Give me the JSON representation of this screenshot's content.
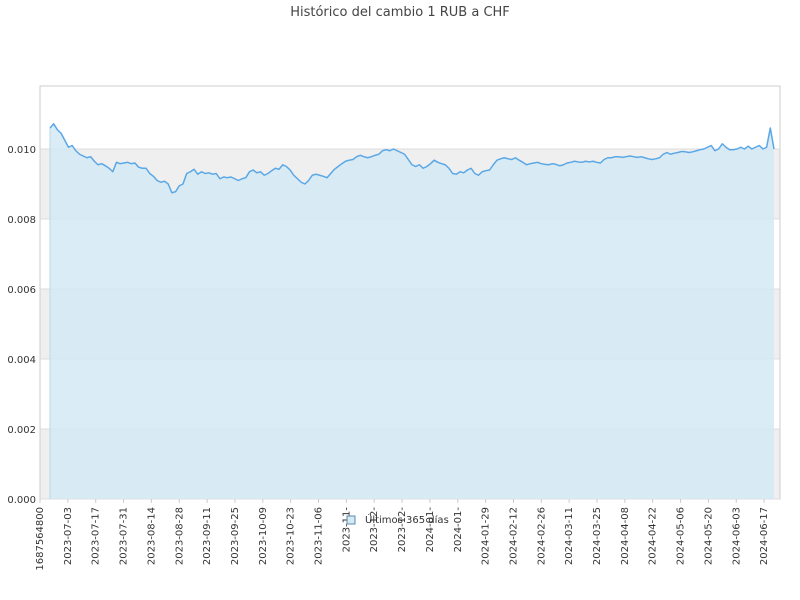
{
  "chart_data": {
    "type": "area",
    "title": "Histórico del cambio 1 RUB a CHF",
    "xlabel": "",
    "ylabel": "",
    "ylim": [
      0,
      0.0118
    ],
    "yticks": [
      "0.000",
      "0.002",
      "0.004",
      "0.006",
      "0.008",
      "0.010"
    ],
    "xticks": [
      "1687564800",
      "2023-07-03",
      "2023-07-17",
      "2023-07-31",
      "2023-08-14",
      "2023-08-28",
      "2023-09-11",
      "2023-09-25",
      "2023-10-09",
      "2023-10-23",
      "2023-11-06",
      "2023-11-",
      "2023-12-",
      "2023-12-",
      "2024-01-",
      "2024-01-",
      "2024-01-29",
      "2024-02-12",
      "2024-02-26",
      "2024-03-11",
      "2024-03-25",
      "2024-04-08",
      "2024-04-22",
      "2024-05-06",
      "2024-05-20",
      "2024-06-03",
      "2024-06-17"
    ],
    "grid": true,
    "legend": "bottom-center",
    "colors": {
      "line": "#5aa7e6",
      "fill": "#d4e9f3",
      "band": "#efefef",
      "grid": "#dddddd",
      "axis": "#cccccc"
    },
    "series": [
      {
        "name": "Últimos 365 días",
        "values": [
          0.0106,
          0.01072,
          0.01055,
          0.01045,
          0.01025,
          0.01005,
          0.0101,
          0.00995,
          0.00985,
          0.0098,
          0.00975,
          0.00978,
          0.00965,
          0.00955,
          0.00958,
          0.00952,
          0.00945,
          0.00935,
          0.00962,
          0.00958,
          0.0096,
          0.00962,
          0.00958,
          0.0096,
          0.00948,
          0.00945,
          0.00945,
          0.0093,
          0.00922,
          0.0091,
          0.00905,
          0.00908,
          0.009,
          0.00875,
          0.00878,
          0.00895,
          0.009,
          0.0093,
          0.00935,
          0.00942,
          0.00928,
          0.00935,
          0.0093,
          0.00932,
          0.00928,
          0.0093,
          0.00915,
          0.0092,
          0.00918,
          0.0092,
          0.00915,
          0.0091,
          0.00915,
          0.00918,
          0.00935,
          0.0094,
          0.00932,
          0.00935,
          0.00925,
          0.0093,
          0.00938,
          0.00945,
          0.00942,
          0.00955,
          0.0095,
          0.0094,
          0.00925,
          0.00915,
          0.00905,
          0.009,
          0.0091,
          0.00925,
          0.00928,
          0.00925,
          0.00922,
          0.00918,
          0.0093,
          0.00942,
          0.0095,
          0.00958,
          0.00965,
          0.00968,
          0.0097,
          0.00978,
          0.00982,
          0.00978,
          0.00975,
          0.00978,
          0.00982,
          0.00985,
          0.00995,
          0.00998,
          0.00995,
          0.01,
          0.00995,
          0.0099,
          0.00985,
          0.0097,
          0.00955,
          0.0095,
          0.00955,
          0.00945,
          0.0095,
          0.00958,
          0.00968,
          0.00962,
          0.00958,
          0.00955,
          0.00945,
          0.0093,
          0.00928,
          0.00935,
          0.00932,
          0.0094,
          0.00945,
          0.0093,
          0.00925,
          0.00935,
          0.00938,
          0.0094,
          0.00955,
          0.00968,
          0.00972,
          0.00975,
          0.00972,
          0.0097,
          0.00975,
          0.00968,
          0.00962,
          0.00955,
          0.00958,
          0.0096,
          0.00962,
          0.00958,
          0.00956,
          0.00955,
          0.00958,
          0.00956,
          0.00952,
          0.00955,
          0.0096,
          0.00962,
          0.00965,
          0.00963,
          0.00962,
          0.00965,
          0.00963,
          0.00965,
          0.00962,
          0.0096,
          0.0097,
          0.00975,
          0.00975,
          0.00978,
          0.00978,
          0.00976,
          0.00978,
          0.0098,
          0.00978,
          0.00976,
          0.00978,
          0.00975,
          0.00972,
          0.0097,
          0.00972,
          0.00975,
          0.00985,
          0.0099,
          0.00985,
          0.00988,
          0.0099,
          0.00993,
          0.00992,
          0.0099,
          0.00992,
          0.00995,
          0.00998,
          0.01,
          0.01005,
          0.0101,
          0.00995,
          0.01,
          0.01015,
          0.01005,
          0.00998,
          0.00998,
          0.01,
          0.01005,
          0.01,
          0.01008,
          0.01,
          0.01005,
          0.0101,
          0.01,
          0.01005,
          0.0106,
          0.01
        ]
      }
    ]
  }
}
